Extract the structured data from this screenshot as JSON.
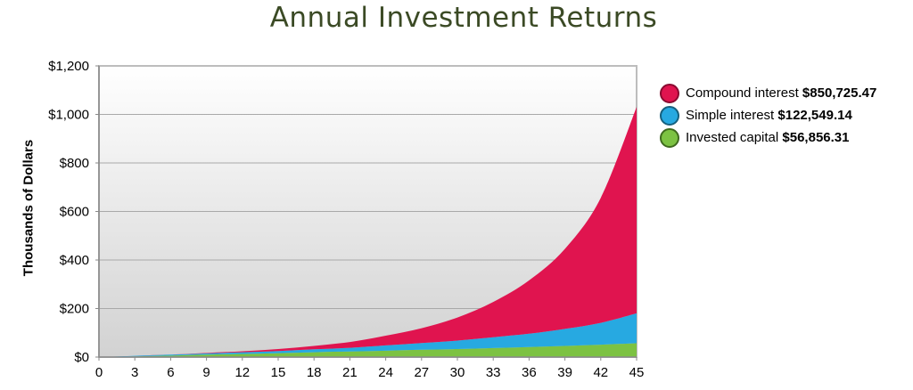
{
  "title": "Annual Investment Returns",
  "chart_data": {
    "type": "area",
    "stacked": true,
    "title": "Annual Investment Returns",
    "xlabel": "",
    "ylabel": "Thousands of Dollars",
    "x_ticks": [
      "0",
      "3",
      "6",
      "9",
      "12",
      "15",
      "18",
      "21",
      "24",
      "27",
      "30",
      "33",
      "36",
      "39",
      "42",
      "45"
    ],
    "y_ticks": [
      "$0",
      "$200",
      "$400",
      "$600",
      "$800",
      "$1,000",
      "$1,200"
    ],
    "xlim": [
      0,
      45
    ],
    "ylim": [
      0,
      1200
    ],
    "grid": true,
    "legend_position": "right",
    "x": [
      0,
      3,
      6,
      9,
      12,
      15,
      18,
      21,
      24,
      27,
      30,
      33,
      36,
      39,
      42,
      45
    ],
    "series": [
      {
        "name": "Invested capital",
        "value_label": "$56,856.31",
        "color": "#7cc242",
        "values": [
          0,
          3,
          6,
          10,
          13,
          16,
          20,
          23,
          26,
          30,
          33,
          37,
          41,
          46,
          51,
          57
        ]
      },
      {
        "name": "Simple interest",
        "value_label": "$122,549.14",
        "color": "#27a9e1",
        "values": [
          0,
          2,
          4,
          5,
          7,
          9,
          12,
          15,
          22,
          28,
          35,
          45,
          55,
          70,
          90,
          123
        ]
      },
      {
        "name": "Compound interest",
        "value_label": "$850,725.47",
        "color": "#e0144f",
        "values": [
          0,
          0,
          0,
          2,
          4,
          8,
          14,
          24,
          40,
          61,
          95,
          145,
          220,
          330,
          515,
          851
        ]
      }
    ]
  },
  "legend": [
    {
      "label": "Compound interest",
      "value": "$850,725.47",
      "color": "#e0144f",
      "border": "#8a0a30",
      "icon": "circle"
    },
    {
      "label": "Simple interest",
      "value": "$122,549.14",
      "color": "#27a9e1",
      "border": "#16607e",
      "icon": "circle"
    },
    {
      "label": "Invested capital",
      "value": "$56,856.31",
      "color": "#7cc242",
      "border": "#3f6a1e",
      "icon": "circle"
    }
  ]
}
